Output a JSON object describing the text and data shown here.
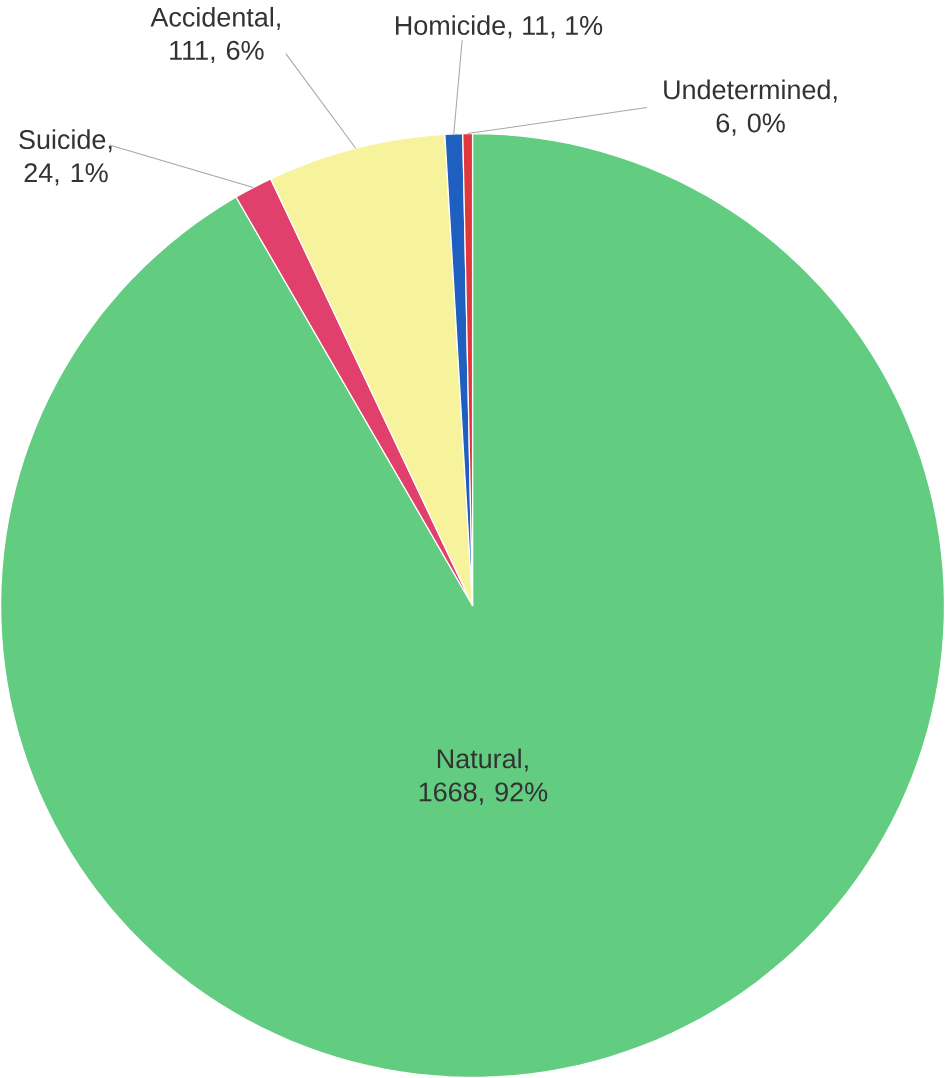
{
  "chart_data": {
    "type": "pie",
    "categories": [
      null,
      null,
      null,
      null,
      null
    ],
    "values": [
      1668,
      24,
      111,
      11,
      6
    ],
    "value_labels": [
      "Natural, 1668, 92%",
      "Suicide, 24, 1%",
      "Accidental, 111, 6%",
      "Homicide, 11, 1%",
      "Undetermined, 6, 0%"
    ],
    "colors": [
      "#62cc80",
      "#e2406c",
      "#f7f39c",
      "#1f5fbf",
      "#e0383c"
    ]
  }
}
